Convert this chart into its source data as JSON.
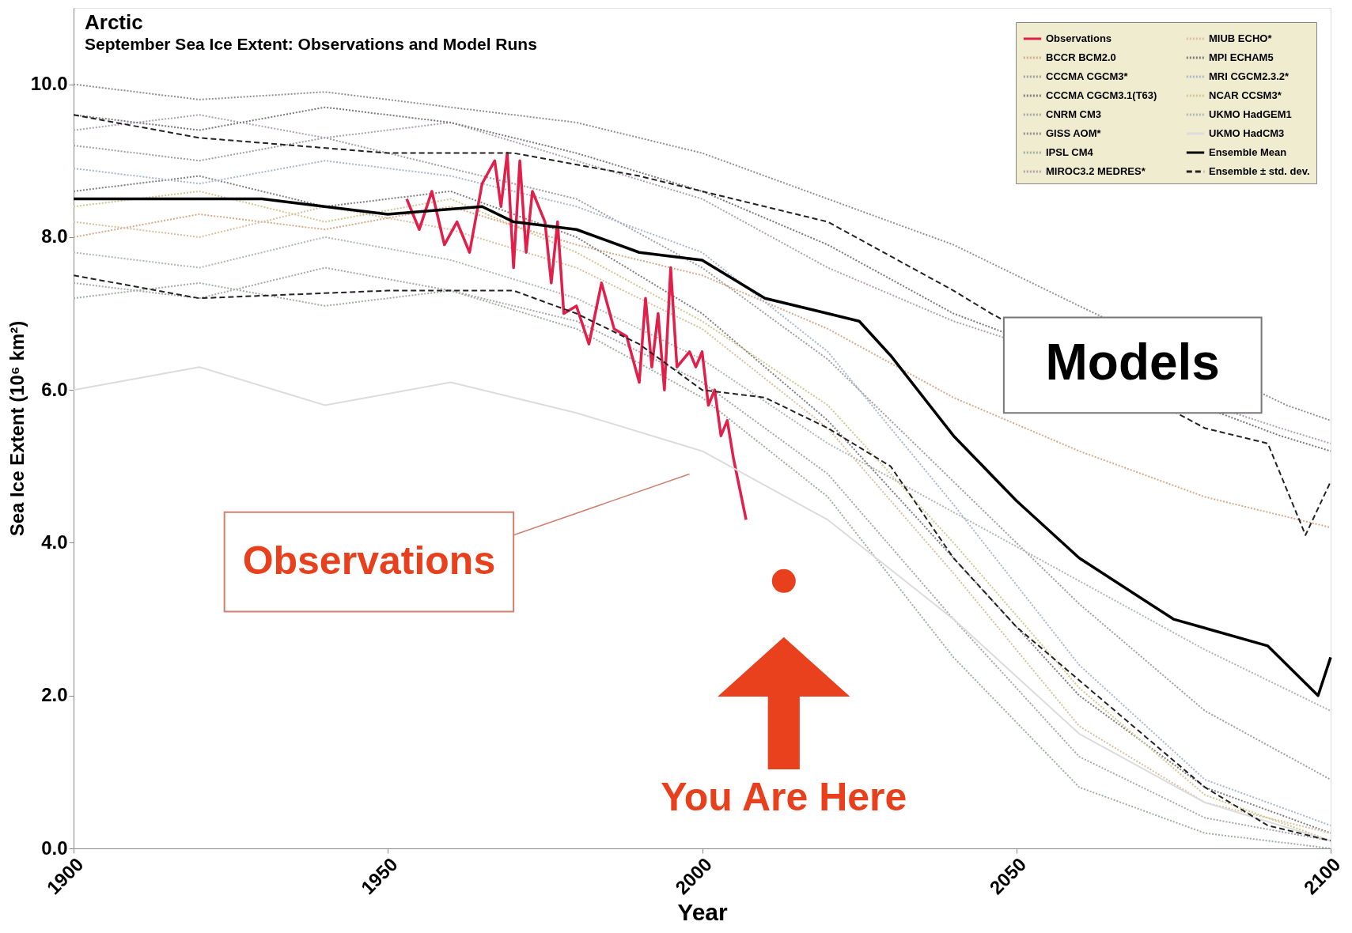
{
  "chart_data": {
    "type": "line",
    "title": "Arctic",
    "subtitle": "September Sea Ice Extent: Observations and Model Runs",
    "xlabel": "Year",
    "ylabel": "Sea Ice Extent (10⁶ km²)",
    "xlim": [
      1900,
      2100
    ],
    "xticks": [
      1900,
      1950,
      2000,
      2050,
      2100
    ],
    "ylim": [
      0,
      11.0
    ],
    "yticks": [
      {
        "value": 0,
        "label": "0.0"
      },
      {
        "value": 2,
        "label": "2.0"
      },
      {
        "value": 4,
        "label": "4.0"
      },
      {
        "value": 6,
        "label": "6.0"
      },
      {
        "value": 8,
        "label": "8.0"
      },
      {
        "value": 10,
        "label": "10.0"
      }
    ],
    "grid": false,
    "legend": "top right",
    "annotations": [
      "Observations",
      "Models",
      "You Are Here"
    ],
    "series": [
      {
        "name": "Observations",
        "color": "#e0204a",
        "line_style": "solid",
        "x": [
          1953,
          1955,
          1957,
          1959,
          1961,
          1963,
          1965,
          1967,
          1968,
          1969,
          1970,
          1971,
          1972,
          1973,
          1975,
          1976,
          1977,
          1978,
          1980,
          1982,
          1984,
          1986,
          1988,
          1990,
          1991,
          1992,
          1993,
          1994,
          1995,
          1996,
          1998,
          1999,
          2000,
          2001,
          2002,
          2003,
          2004,
          2005,
          2007
        ],
        "values": [
          8.5,
          8.1,
          8.6,
          7.9,
          8.2,
          7.8,
          8.7,
          9.0,
          8.4,
          9.1,
          7.6,
          9.0,
          7.8,
          8.6,
          8.2,
          7.4,
          8.2,
          7.0,
          7.1,
          6.6,
          7.4,
          6.8,
          6.7,
          6.1,
          7.2,
          6.3,
          7.0,
          6.0,
          7.6,
          6.3,
          6.5,
          6.3,
          6.5,
          5.8,
          6.0,
          5.4,
          5.6,
          5.1,
          4.3
        ]
      },
      {
        "name": "BCCR BCM2.0",
        "color": "#d9a98a",
        "line_style": "dotted",
        "x": [
          1900,
          1920,
          1940,
          1960,
          1980,
          2000,
          2020,
          2040,
          2060,
          2080,
          2100
        ],
        "values": [
          8.0,
          8.3,
          8.1,
          8.4,
          7.9,
          7.5,
          6.8,
          5.9,
          5.2,
          4.6,
          4.2
        ]
      },
      {
        "name": "CCCMA CGCM3*",
        "color": "#a0a0a0",
        "line_style": "dotted",
        "x": [
          1900,
          1920,
          1940,
          1960,
          1980,
          2000,
          2020,
          2040,
          2060,
          2080,
          2100
        ],
        "values": [
          9.2,
          9.0,
          9.3,
          8.9,
          8.5,
          7.6,
          6.4,
          4.8,
          3.2,
          1.8,
          0.9
        ]
      },
      {
        "name": "CCCMA CGCM3.1(T63)",
        "color": "#808080",
        "line_style": "dotted",
        "x": [
          1900,
          1920,
          1940,
          1960,
          1980,
          2000,
          2020,
          2040,
          2060,
          2080,
          2100
        ],
        "values": [
          8.6,
          8.8,
          8.4,
          8.6,
          8.0,
          7.0,
          5.6,
          3.8,
          2.0,
          0.8,
          0.2
        ]
      },
      {
        "name": "CNRM CM3",
        "color": "#a8a8a8",
        "line_style": "dotted",
        "x": [
          1900,
          1920,
          1940,
          1960,
          1980,
          2000,
          2020,
          2040,
          2060,
          2080,
          2100
        ],
        "values": [
          7.4,
          7.2,
          7.6,
          7.3,
          6.9,
          6.1,
          4.9,
          3.0,
          1.2,
          0.4,
          0.1
        ]
      },
      {
        "name": "GISS AOM*",
        "color": "#909090",
        "line_style": "dotted",
        "x": [
          1900,
          1920,
          1940,
          1960,
          1980,
          2000,
          2020,
          2040,
          2060,
          2093,
          2100
        ],
        "values": [
          10.0,
          9.8,
          9.9,
          9.7,
          9.5,
          9.1,
          8.5,
          7.9,
          7.1,
          5.8,
          5.6
        ]
      },
      {
        "name": "IPSL CM4",
        "color": "#9fb0a0",
        "line_style": "dotted",
        "x": [
          1900,
          1920,
          1940,
          1960,
          1980,
          2000,
          2020,
          2040,
          2060,
          2080,
          2100
        ],
        "values": [
          7.2,
          7.4,
          7.1,
          7.3,
          6.8,
          5.9,
          4.6,
          2.5,
          0.8,
          0.2,
          0.0
        ]
      },
      {
        "name": "MIROC3.2 MEDRES*",
        "color": "#b0a0b0",
        "line_style": "dotted",
        "x": [
          1900,
          1920,
          1940,
          1960,
          1980,
          2000,
          2020,
          2040,
          2092,
          2100
        ],
        "values": [
          9.4,
          9.6,
          9.3,
          9.5,
          9.0,
          8.5,
          7.6,
          6.9,
          5.5,
          5.3
        ]
      },
      {
        "name": "MIUB ECHO*",
        "color": "#d8c0a0",
        "line_style": "dotted",
        "x": [
          1900,
          1920,
          1940,
          1960,
          1980,
          2000,
          2020,
          2040,
          2060,
          2080,
          2100
        ],
        "values": [
          8.2,
          8.0,
          8.4,
          8.1,
          7.6,
          6.8,
          5.5,
          3.6,
          1.6,
          0.6,
          0.2
        ]
      },
      {
        "name": "MPI ECHAM5",
        "color": "#7a7a7a",
        "line_style": "dotted",
        "x": [
          1900,
          1920,
          1940,
          1960,
          1980,
          2000,
          2020,
          2040,
          2092,
          2100
        ],
        "values": [
          9.6,
          9.4,
          9.7,
          9.5,
          9.1,
          8.6,
          7.9,
          7.0,
          5.4,
          5.2
        ]
      },
      {
        "name": "MRI CGCM2.3.2*",
        "color": "#a8b8d0",
        "line_style": "dotted",
        "x": [
          1900,
          1920,
          1940,
          1960,
          1980,
          2000,
          2020,
          2040,
          2060,
          2080,
          2100
        ],
        "values": [
          8.9,
          8.7,
          9.0,
          8.8,
          8.4,
          7.8,
          6.5,
          4.5,
          2.4,
          0.9,
          0.3
        ]
      },
      {
        "name": "NCAR CCSM3*",
        "color": "#d0c890",
        "line_style": "dotted",
        "x": [
          1900,
          1920,
          1940,
          1960,
          1980,
          2000,
          2020,
          2040,
          2060,
          2080,
          2100
        ],
        "values": [
          8.4,
          8.6,
          8.2,
          8.5,
          7.8,
          6.9,
          5.8,
          4.0,
          2.1,
          0.7,
          0.1
        ]
      },
      {
        "name": "UKMO HadGEM1",
        "color": "#b0b8b0",
        "line_style": "dotted",
        "x": [
          1900,
          1920,
          1940,
          1960,
          1980,
          2000,
          2020,
          2040,
          2060,
          2080,
          2100
        ],
        "values": [
          7.8,
          7.6,
          8.0,
          7.7,
          7.2,
          6.4,
          5.3,
          4.4,
          3.5,
          2.6,
          1.8
        ]
      },
      {
        "name": "UKMO HadCM3",
        "color": "#dcdcdc",
        "line_style": "solid",
        "x": [
          1900,
          1920,
          1940,
          1960,
          1980,
          2000,
          2020,
          2040,
          2060,
          2080,
          2100
        ],
        "values": [
          6.0,
          6.3,
          5.8,
          6.1,
          5.7,
          5.2,
          4.3,
          3.0,
          1.5,
          0.6,
          0.1
        ]
      },
      {
        "name": "Ensemble Mean",
        "color": "#000000",
        "line_style": "solid",
        "x": [
          1900,
          1910,
          1930,
          1950,
          1965,
          1970,
          1980,
          1990,
          2000,
          2010,
          2020,
          2025,
          2030,
          2040,
          2050,
          2060,
          2075,
          2090,
          2098,
          2100
        ],
        "values": [
          8.5,
          8.5,
          8.5,
          8.3,
          8.4,
          8.2,
          8.1,
          7.8,
          7.7,
          7.2,
          7.0,
          6.9,
          6.45,
          5.4,
          4.55,
          3.8,
          3.0,
          2.65,
          2.0,
          2.5
        ]
      },
      {
        "name": "Ensemble ± std. dev.",
        "color": "#222222",
        "line_style": "dashed",
        "x": [
          1900,
          1920,
          1950,
          1970,
          1990,
          2000,
          2020,
          2040,
          2046,
          2080,
          2090,
          2096,
          2100
        ],
        "values": [
          9.6,
          9.3,
          9.1,
          9.1,
          8.8,
          8.6,
          8.2,
          7.3,
          7.0,
          5.5,
          5.3,
          4.1,
          4.8
        ]
      },
      {
        "color": "#222222",
        "line_style": "dashed",
        "x": [
          1900,
          1920,
          1950,
          1970,
          1980,
          1990,
          2000,
          2010,
          2020,
          2030,
          2040,
          2050,
          2060,
          2070,
          2080,
          2090,
          2100
        ],
        "values": [
          7.5,
          7.2,
          7.3,
          7.3,
          7.0,
          6.6,
          6.0,
          5.9,
          5.5,
          5.0,
          3.8,
          2.9,
          2.2,
          1.5,
          0.8,
          0.3,
          0.1
        ]
      },
      {
        "type": "scatter",
        "marker": "circle",
        "color": "#e8401c",
        "x": [
          2013
        ],
        "values": [
          3.5
        ]
      }
    ]
  }
}
